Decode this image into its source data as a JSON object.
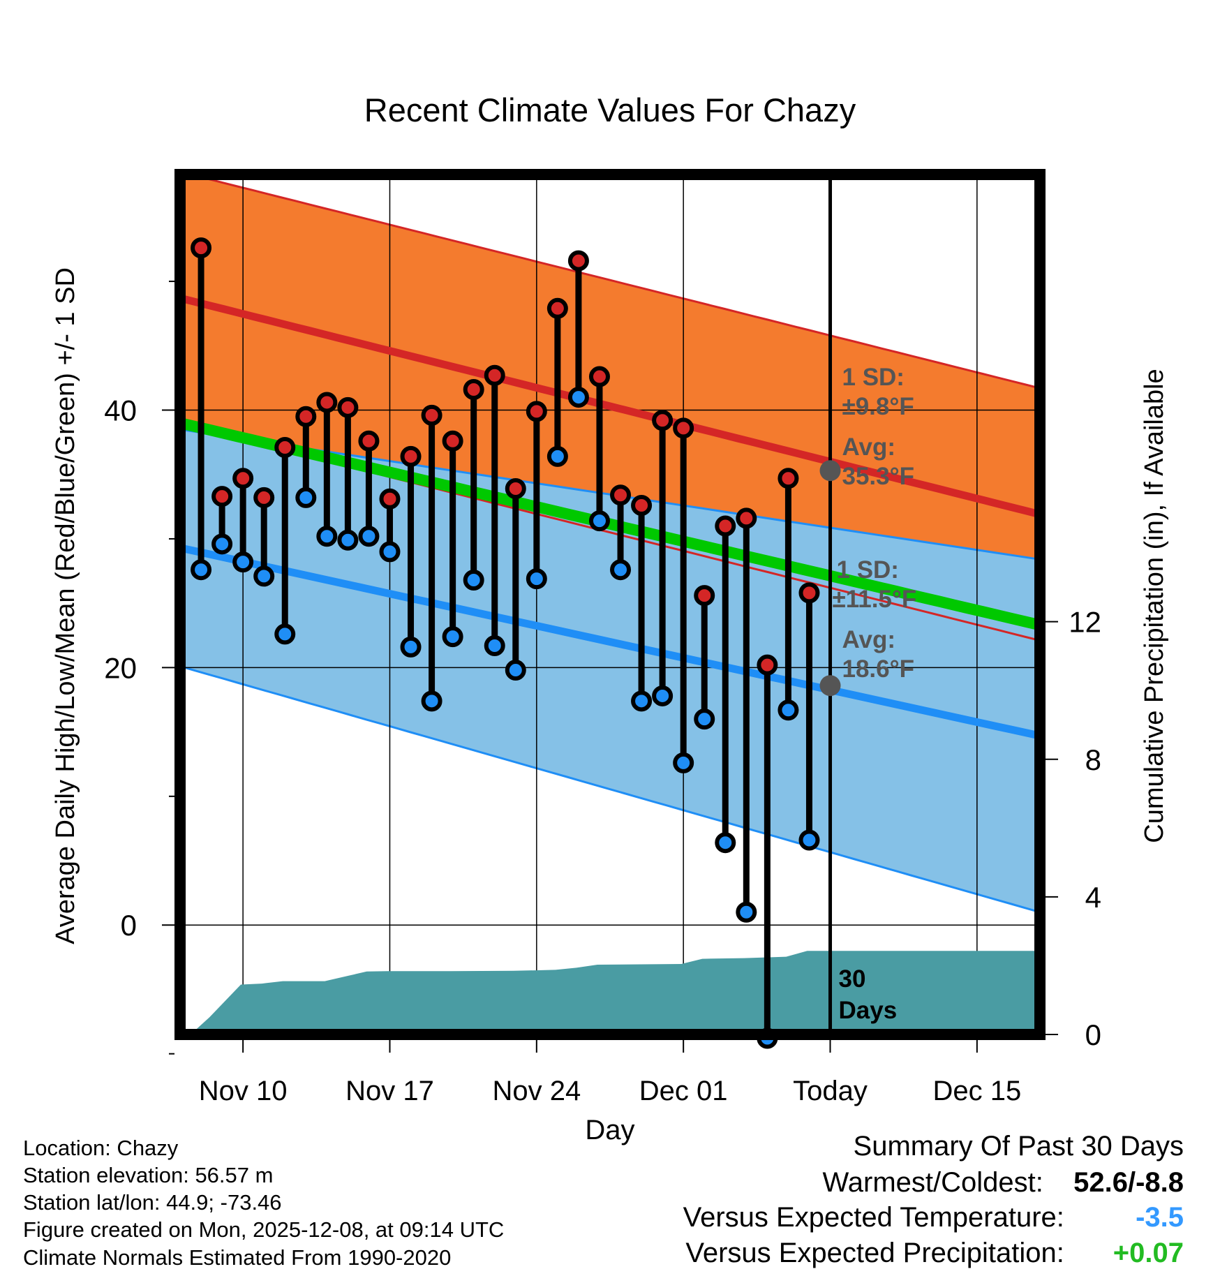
{
  "chart_data": {
    "type": "climate-range",
    "title": "Recent Climate Values For Chazy",
    "xlabel": "Day",
    "ylabel_left": "Average Daily High/Low/Mean (Red/Blue/Green) +/- 1 SD",
    "ylabel_right": "Cumulative Precipitation (in), If Available",
    "x_tick_labels": [
      "Nov 10",
      "Nov 17",
      "Nov 24",
      "Dec 01",
      "Today",
      "Dec 15"
    ],
    "x_tick_days": [
      0,
      7,
      14,
      21,
      28,
      35
    ],
    "x_range_days": [
      -3,
      38
    ],
    "y_left_range": [
      -8.5,
      58.3
    ],
    "y_left_ticks": [
      0,
      20,
      40
    ],
    "y_left_minor_ticks": [
      -10,
      10,
      30,
      50
    ],
    "y_right_range": [
      0,
      25
    ],
    "y_right_ticks": [
      0,
      4,
      8,
      12
    ],
    "normal_high": {
      "day_start": -3,
      "day_end": 38,
      "mean_start": 48.7,
      "mean_end": 31.9,
      "sd_start": 9.8,
      "sd_end": 9.8
    },
    "normal_low": {
      "day_start": -3,
      "day_end": 38,
      "mean_start": 29.3,
      "mean_end": 14.7,
      "sd_start": 9.2,
      "sd_end": 13.7
    },
    "normal_mean": {
      "day_start": -3,
      "day_end": 38,
      "mean_start": 39.0,
      "mean_end": 23.3
    },
    "observed_days": [
      -2,
      -1,
      0,
      1,
      2,
      3,
      4,
      5,
      6,
      7,
      8,
      9,
      10,
      11,
      12,
      13,
      14,
      15,
      16,
      17,
      18,
      19,
      20,
      21,
      22,
      23,
      24,
      25,
      26,
      27
    ],
    "observed_high": [
      52.6,
      33.3,
      34.7,
      33.2,
      37.1,
      39.5,
      40.6,
      40.2,
      37.6,
      33.1,
      36.4,
      39.6,
      37.6,
      41.6,
      42.7,
      33.9,
      39.9,
      47.9,
      51.6,
      42.6,
      33.4,
      32.6,
      39.2,
      38.6,
      25.6,
      31.0,
      31.6,
      20.2,
      34.7,
      25.8
    ],
    "observed_low": [
      27.6,
      29.6,
      28.2,
      27.1,
      22.6,
      33.2,
      30.2,
      29.9,
      30.2,
      29.0,
      21.6,
      17.4,
      22.4,
      26.8,
      21.7,
      19.8,
      26.9,
      36.4,
      41.0,
      31.4,
      27.6,
      17.4,
      17.8,
      12.6,
      16.0,
      6.4,
      1.0,
      -8.8,
      16.7,
      6.6
    ],
    "precip_days": [
      -2.5,
      -1.6,
      -0.1,
      0.9,
      1.9,
      3.9,
      5.9,
      6.9,
      9.9,
      12.9,
      14.9,
      15.9,
      16.9,
      20.9,
      21.9,
      23.9,
      25.9,
      26.9,
      38
    ],
    "precip_cumulative": [
      0.0,
      0.5,
      1.45,
      1.48,
      1.55,
      1.55,
      1.83,
      1.84,
      1.84,
      1.85,
      1.88,
      1.94,
      2.03,
      2.05,
      2.2,
      2.22,
      2.26,
      2.43,
      2.43
    ],
    "annotations": {
      "high_sd": "1 SD:",
      "high_sd_value": "±9.8°F",
      "high_avg": "Avg:",
      "high_avg_value": "35.3°F",
      "low_sd": "1 SD:",
      "low_sd_value": "±11.5°F",
      "low_avg": "Avg:",
      "low_avg_value": "18.6°F",
      "days_number": "30",
      "days_label": "Days"
    },
    "today_day": 28,
    "today_high_avg": 35.3,
    "today_low_avg": 18.6
  },
  "colors": {
    "high_band": "#f47b2e",
    "high_mean": "#d42626",
    "low_band": "#85c1e7",
    "low_mean": "#1f8ef6",
    "mean_line": "#00c800",
    "overlap": "#951015",
    "precip": "#4a9ca3",
    "high_dot": "#d42626",
    "low_dot": "#1f8ef6",
    "annotation": "#555555",
    "negative_value": "#3399ff",
    "positive_value": "#22bb22"
  },
  "info": {
    "location": "Location: Chazy",
    "elevation": "Station elevation: 56.57 m",
    "latlon": "Station lat/lon: 44.9; -73.46",
    "created": "Figure created on Mon, 2025-12-08, at 09:14 UTC",
    "normals": "Climate Normals Estimated From 1990-2020"
  },
  "summary": {
    "heading": "Summary Of Past 30 Days",
    "warmest_label": "Warmest/Coldest:",
    "warmest_value": "52.6/-8.8",
    "temp_label": "Versus Expected Temperature:",
    "temp_value": "-3.5",
    "precip_label": "Versus Expected Precipitation:",
    "precip_value": "+0.07"
  }
}
